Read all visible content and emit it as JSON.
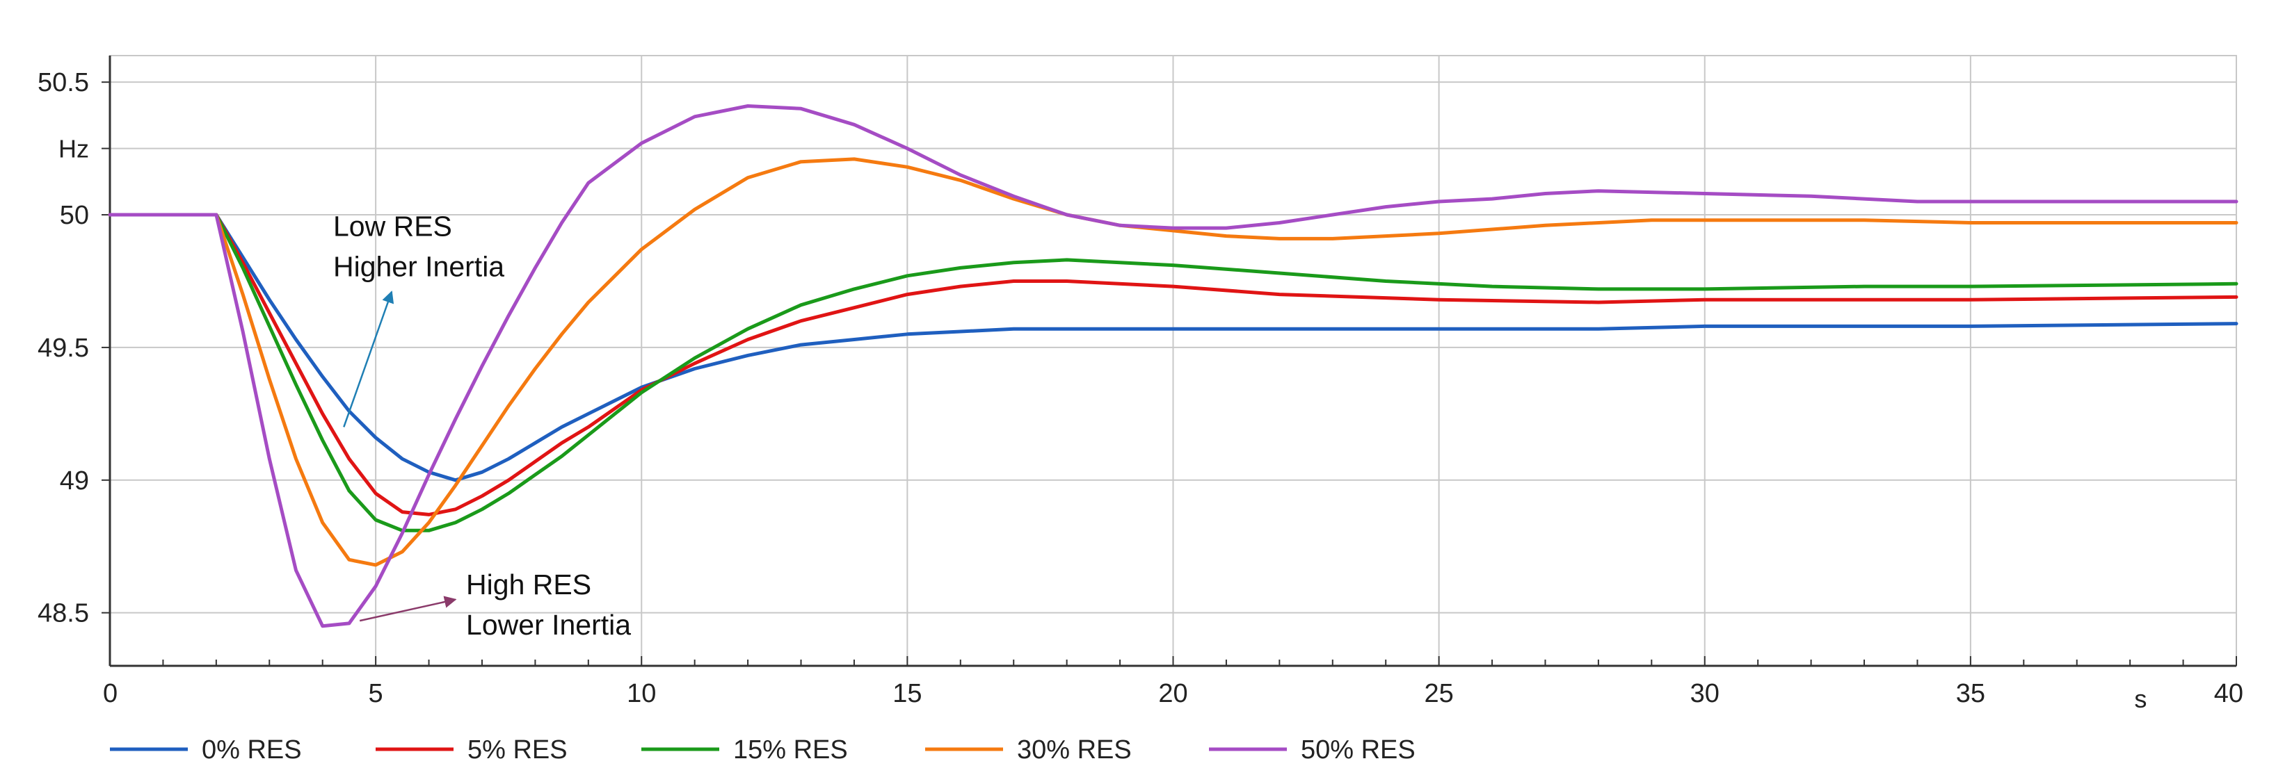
{
  "chart_data": {
    "type": "line",
    "title": "",
    "xlabel": "s",
    "ylabel": "Hz",
    "xlim": [
      0,
      40
    ],
    "ylim": [
      48.3,
      50.6
    ],
    "x_ticks": [
      "0",
      "5",
      "10",
      "15",
      "20",
      "25",
      "30",
      "35",
      "40"
    ],
    "y_ticks": [
      "48.5",
      "49",
      "49.5",
      "50",
      "50.5"
    ],
    "grid": true,
    "legend_position": "bottom",
    "series": [
      {
        "name": "0% RES",
        "color": "#1f5fbf",
        "points": [
          [
            0,
            50
          ],
          [
            2,
            50
          ],
          [
            2.5,
            49.84
          ],
          [
            3,
            49.68
          ],
          [
            3.5,
            49.53
          ],
          [
            4,
            49.39
          ],
          [
            4.5,
            49.26
          ],
          [
            5,
            49.16
          ],
          [
            5.5,
            49.08
          ],
          [
            6,
            49.03
          ],
          [
            6.5,
            49.0
          ],
          [
            7,
            49.03
          ],
          [
            7.5,
            49.08
          ],
          [
            8,
            49.14
          ],
          [
            8.5,
            49.2
          ],
          [
            9,
            49.25
          ],
          [
            10,
            49.35
          ],
          [
            11,
            49.42
          ],
          [
            12,
            49.47
          ],
          [
            13,
            49.51
          ],
          [
            14,
            49.53
          ],
          [
            15,
            49.55
          ],
          [
            16,
            49.56
          ],
          [
            17,
            49.57
          ],
          [
            20,
            49.57
          ],
          [
            25,
            49.57
          ],
          [
            28,
            49.57
          ],
          [
            30,
            49.58
          ],
          [
            35,
            49.58
          ],
          [
            40,
            49.59
          ]
        ]
      },
      {
        "name": "5% RES",
        "color": "#e01414",
        "points": [
          [
            0,
            50
          ],
          [
            2,
            50
          ],
          [
            2.5,
            49.82
          ],
          [
            3,
            49.63
          ],
          [
            3.5,
            49.44
          ],
          [
            4,
            49.25
          ],
          [
            4.5,
            49.08
          ],
          [
            5,
            48.95
          ],
          [
            5.5,
            48.88
          ],
          [
            6,
            48.87
          ],
          [
            6.5,
            48.89
          ],
          [
            7,
            48.94
          ],
          [
            7.5,
            49.0
          ],
          [
            8,
            49.07
          ],
          [
            8.5,
            49.14
          ],
          [
            9,
            49.2
          ],
          [
            10,
            49.34
          ],
          [
            11,
            49.44
          ],
          [
            12,
            49.53
          ],
          [
            13,
            49.6
          ],
          [
            14,
            49.65
          ],
          [
            15,
            49.7
          ],
          [
            16,
            49.73
          ],
          [
            17,
            49.75
          ],
          [
            18,
            49.75
          ],
          [
            20,
            49.73
          ],
          [
            22,
            49.7
          ],
          [
            25,
            49.68
          ],
          [
            28,
            49.67
          ],
          [
            30,
            49.68
          ],
          [
            35,
            49.68
          ],
          [
            40,
            49.69
          ]
        ]
      },
      {
        "name": "15% RES",
        "color": "#1a9a1a",
        "points": [
          [
            0,
            50
          ],
          [
            2,
            50
          ],
          [
            2.5,
            49.8
          ],
          [
            3,
            49.58
          ],
          [
            3.5,
            49.36
          ],
          [
            4,
            49.15
          ],
          [
            4.5,
            48.96
          ],
          [
            5,
            48.85
          ],
          [
            5.5,
            48.81
          ],
          [
            6,
            48.81
          ],
          [
            6.5,
            48.84
          ],
          [
            7,
            48.89
          ],
          [
            7.5,
            48.95
          ],
          [
            8,
            49.02
          ],
          [
            8.5,
            49.09
          ],
          [
            9,
            49.17
          ],
          [
            10,
            49.33
          ],
          [
            11,
            49.46
          ],
          [
            12,
            49.57
          ],
          [
            13,
            49.66
          ],
          [
            14,
            49.72
          ],
          [
            15,
            49.77
          ],
          [
            16,
            49.8
          ],
          [
            17,
            49.82
          ],
          [
            18,
            49.83
          ],
          [
            19,
            49.82
          ],
          [
            20,
            49.81
          ],
          [
            22,
            49.78
          ],
          [
            24,
            49.75
          ],
          [
            26,
            49.73
          ],
          [
            28,
            49.72
          ],
          [
            30,
            49.72
          ],
          [
            33,
            49.73
          ],
          [
            35,
            49.73
          ],
          [
            40,
            49.74
          ]
        ]
      },
      {
        "name": "30% RES",
        "color": "#f57a10",
        "points": [
          [
            0,
            50
          ],
          [
            2,
            50
          ],
          [
            2.5,
            49.7
          ],
          [
            3,
            49.38
          ],
          [
            3.5,
            49.08
          ],
          [
            4,
            48.84
          ],
          [
            4.5,
            48.7
          ],
          [
            5,
            48.68
          ],
          [
            5.5,
            48.73
          ],
          [
            6,
            48.84
          ],
          [
            6.5,
            48.98
          ],
          [
            7,
            49.13
          ],
          [
            7.5,
            49.28
          ],
          [
            8,
            49.42
          ],
          [
            8.5,
            49.55
          ],
          [
            9,
            49.67
          ],
          [
            10,
            49.87
          ],
          [
            11,
            50.02
          ],
          [
            12,
            50.14
          ],
          [
            13,
            50.2
          ],
          [
            14,
            50.21
          ],
          [
            15,
            50.18
          ],
          [
            16,
            50.13
          ],
          [
            17,
            50.06
          ],
          [
            18,
            50.0
          ],
          [
            19,
            49.96
          ],
          [
            20,
            49.94
          ],
          [
            21,
            49.92
          ],
          [
            22,
            49.91
          ],
          [
            23,
            49.91
          ],
          [
            25,
            49.93
          ],
          [
            27,
            49.96
          ],
          [
            29,
            49.98
          ],
          [
            31,
            49.98
          ],
          [
            33,
            49.98
          ],
          [
            35,
            49.97
          ],
          [
            40,
            49.97
          ]
        ]
      },
      {
        "name": "50% RES",
        "color": "#a54cc4",
        "points": [
          [
            0,
            50
          ],
          [
            2,
            50
          ],
          [
            2.5,
            49.56
          ],
          [
            3,
            49.08
          ],
          [
            3.5,
            48.66
          ],
          [
            4,
            48.45
          ],
          [
            4.5,
            48.46
          ],
          [
            5,
            48.6
          ],
          [
            5.5,
            48.8
          ],
          [
            6,
            49.02
          ],
          [
            6.5,
            49.23
          ],
          [
            7,
            49.43
          ],
          [
            7.5,
            49.62
          ],
          [
            8,
            49.8
          ],
          [
            8.5,
            49.97
          ],
          [
            9,
            50.12
          ],
          [
            10,
            50.27
          ],
          [
            11,
            50.37
          ],
          [
            12,
            50.41
          ],
          [
            13,
            50.4
          ],
          [
            14,
            50.34
          ],
          [
            15,
            50.25
          ],
          [
            16,
            50.15
          ],
          [
            17,
            50.07
          ],
          [
            18,
            50.0
          ],
          [
            19,
            49.96
          ],
          [
            20,
            49.95
          ],
          [
            21,
            49.95
          ],
          [
            22,
            49.97
          ],
          [
            23,
            50.0
          ],
          [
            24,
            50.03
          ],
          [
            25,
            50.05
          ],
          [
            26,
            50.06
          ],
          [
            27,
            50.08
          ],
          [
            28,
            50.09
          ],
          [
            30,
            50.08
          ],
          [
            32,
            50.07
          ],
          [
            34,
            50.05
          ],
          [
            36,
            50.05
          ],
          [
            40,
            50.05
          ]
        ]
      }
    ],
    "annotations": [
      {
        "lines": [
          "Low RES",
          "Higher Inertia"
        ],
        "color": "#1f7fb4",
        "text_x": 4.2,
        "text_y": 49.92,
        "arrow_from": [
          4.4,
          49.2
        ],
        "arrow_to": [
          5.3,
          49.71
        ]
      },
      {
        "lines": [
          "High RES",
          "Lower Inertia"
        ],
        "color": "#8a3a6a",
        "text_x": 6.7,
        "text_y": 48.57,
        "arrow_from": [
          4.7,
          48.47
        ],
        "arrow_to": [
          6.5,
          48.55
        ]
      }
    ]
  }
}
